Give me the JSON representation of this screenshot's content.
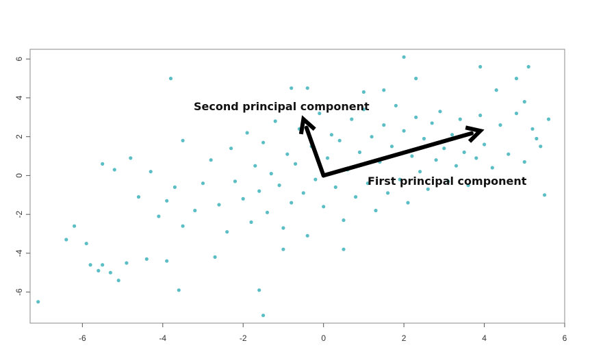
{
  "chart_data": {
    "type": "scatter",
    "title": "",
    "xlabel": "",
    "ylabel": "",
    "xlim": [
      -7.3,
      6.0
    ],
    "ylim": [
      -7.6,
      6.5
    ],
    "xticks": [
      -6,
      -4,
      -2,
      0,
      2,
      4,
      6
    ],
    "yticks": [
      -6,
      -4,
      -2,
      0,
      2,
      4,
      6
    ],
    "grid": false,
    "legend": "none",
    "point_color": "#5BBEC4",
    "arrow_color": "#000000",
    "series": [
      {
        "points": [
          [
            -7.1,
            -6.5
          ],
          [
            -6.4,
            -3.3
          ],
          [
            -6.2,
            -2.6
          ],
          [
            -5.9,
            -3.5
          ],
          [
            -5.8,
            -4.6
          ],
          [
            -5.6,
            -4.9
          ],
          [
            -5.5,
            -4.6
          ],
          [
            -5.3,
            -5.0
          ],
          [
            -5.1,
            -5.4
          ],
          [
            -5.5,
            0.6
          ],
          [
            -5.2,
            0.3
          ],
          [
            -4.9,
            -4.5
          ],
          [
            -4.4,
            -4.3
          ],
          [
            -3.9,
            -4.4
          ],
          [
            -3.8,
            5.0
          ],
          [
            -3.5,
            1.8
          ],
          [
            -3.6,
            -5.9
          ],
          [
            -1.6,
            -5.9
          ],
          [
            -1.5,
            -7.2
          ],
          [
            -0.8,
            4.5
          ],
          [
            -0.4,
            4.5
          ],
          [
            1.0,
            4.3
          ],
          [
            1.5,
            4.4
          ],
          [
            2.0,
            6.1
          ],
          [
            2.3,
            5.0
          ],
          [
            3.9,
            5.6
          ],
          [
            5.1,
            5.6
          ],
          [
            4.8,
            5.0
          ],
          [
            4.3,
            4.4
          ],
          [
            5.0,
            3.8
          ],
          [
            5.6,
            2.9
          ],
          [
            5.3,
            1.9
          ],
          [
            5.5,
            -1.0
          ],
          [
            -1.0,
            -3.8
          ],
          [
            0.5,
            -3.8
          ],
          [
            -2.7,
            -4.2
          ],
          [
            -4.8,
            0.9
          ],
          [
            -4.6,
            -1.1
          ],
          [
            -4.3,
            0.2
          ],
          [
            -4.1,
            -2.1
          ],
          [
            -3.9,
            -1.3
          ],
          [
            -3.7,
            -0.6
          ],
          [
            -3.5,
            -2.6
          ],
          [
            -3.2,
            -1.8
          ],
          [
            -3.0,
            -0.4
          ],
          [
            -2.8,
            0.8
          ],
          [
            -2.6,
            -1.5
          ],
          [
            -2.4,
            -2.9
          ],
          [
            -2.3,
            1.4
          ],
          [
            -2.2,
            -0.3
          ],
          [
            -2.0,
            -1.2
          ],
          [
            -1.9,
            2.2
          ],
          [
            -1.8,
            -2.4
          ],
          [
            -1.7,
            0.5
          ],
          [
            -1.6,
            -0.8
          ],
          [
            -1.5,
            1.7
          ],
          [
            -1.4,
            -1.9
          ],
          [
            -1.3,
            0.1
          ],
          [
            -1.2,
            2.8
          ],
          [
            -1.1,
            -0.5
          ],
          [
            -1.0,
            -2.7
          ],
          [
            -0.9,
            1.1
          ],
          [
            -0.8,
            -1.4
          ],
          [
            -0.7,
            0.6
          ],
          [
            -0.6,
            2.4
          ],
          [
            -0.5,
            -0.9
          ],
          [
            -0.4,
            -3.1
          ],
          [
            -0.3,
            1.5
          ],
          [
            -0.2,
            -0.2
          ],
          [
            -0.1,
            3.2
          ],
          [
            0.0,
            -1.6
          ],
          [
            0.1,
            0.9
          ],
          [
            0.2,
            2.1
          ],
          [
            0.3,
            -0.6
          ],
          [
            0.4,
            1.8
          ],
          [
            0.5,
            -2.3
          ],
          [
            0.6,
            0.3
          ],
          [
            0.7,
            2.9
          ],
          [
            0.8,
            -1.1
          ],
          [
            0.9,
            1.2
          ],
          [
            1.0,
            3.4
          ],
          [
            1.1,
            -0.4
          ],
          [
            1.2,
            2.0
          ],
          [
            1.3,
            -1.8
          ],
          [
            1.4,
            0.7
          ],
          [
            1.5,
            2.6
          ],
          [
            1.6,
            -0.9
          ],
          [
            1.7,
            1.5
          ],
          [
            1.8,
            3.6
          ],
          [
            1.9,
            -0.2
          ],
          [
            2.0,
            2.3
          ],
          [
            2.1,
            -1.4
          ],
          [
            2.2,
            1.0
          ],
          [
            2.3,
            3.0
          ],
          [
            2.4,
            0.2
          ],
          [
            2.5,
            1.9
          ],
          [
            2.6,
            -0.7
          ],
          [
            2.7,
            2.7
          ],
          [
            2.8,
            0.8
          ],
          [
            2.9,
            3.3
          ],
          [
            3.0,
            1.4
          ],
          [
            3.1,
            -0.3
          ],
          [
            3.2,
            2.1
          ],
          [
            3.3,
            0.5
          ],
          [
            3.4,
            2.9
          ],
          [
            3.5,
            1.2
          ],
          [
            3.6,
            -0.5
          ],
          [
            3.7,
            2.4
          ],
          [
            3.8,
            0.9
          ],
          [
            3.9,
            3.1
          ],
          [
            4.0,
            1.6
          ],
          [
            4.2,
            0.4
          ],
          [
            4.4,
            2.6
          ],
          [
            4.6,
            1.1
          ],
          [
            4.8,
            3.2
          ],
          [
            5.0,
            0.7
          ],
          [
            5.2,
            2.4
          ],
          [
            5.4,
            1.5
          ]
        ]
      }
    ],
    "annotations": [
      {
        "label": "Second principal component",
        "from": [
          0.0,
          0.0
        ],
        "to": [
          -0.5,
          2.9
        ]
      },
      {
        "label": "First principal component",
        "from": [
          0.0,
          0.0
        ],
        "to": [
          3.9,
          2.3
        ]
      }
    ]
  }
}
